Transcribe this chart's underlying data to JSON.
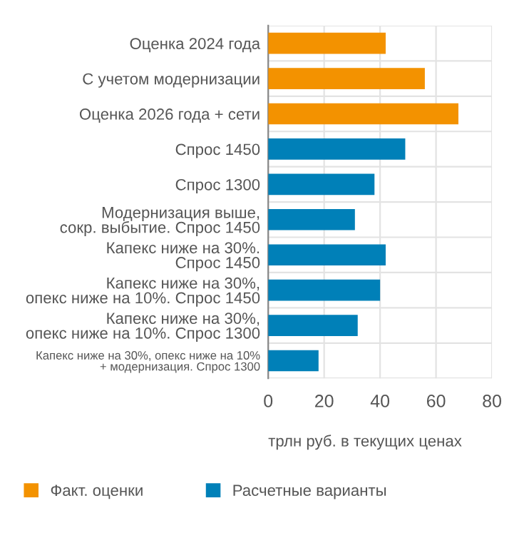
{
  "chart_data": {
    "type": "bar",
    "orientation": "horizontal",
    "xlabel": "трлн руб. в текущих ценах",
    "categories": [
      "Оценка 2024 года",
      "С учетом модернизации",
      "Оценка 2026 года + сети",
      "Спрос 1450",
      "Спрос 1300",
      "Модернизация выше,\nсокр. выбытие. Спрос 1450",
      "Капекс ниже на 30%.\nСпрос 1450",
      "Капекс ниже на 30%,\nопекс ниже на 10%. Спрос 1450",
      "Капекс ниже на 30%,\nопекс ниже на 10%. Спрос 1300",
      "Капекс ниже на 30%, опекс ниже на 10%\n+ модернизация. Спрос 1300"
    ],
    "series": [
      {
        "name": "Факт. оценки",
        "color": "#f39200",
        "values": [
          42,
          56,
          68,
          null,
          null,
          null,
          null,
          null,
          null,
          null
        ]
      },
      {
        "name": "Расчетные варианты",
        "color": "#0080b8",
        "values": [
          null,
          null,
          null,
          49,
          38,
          31,
          42,
          40,
          32,
          18
        ]
      }
    ],
    "xlim": [
      0,
      80
    ],
    "xticks": [
      0,
      20,
      40,
      60,
      80
    ],
    "grid": true,
    "legend": "bottom left"
  }
}
